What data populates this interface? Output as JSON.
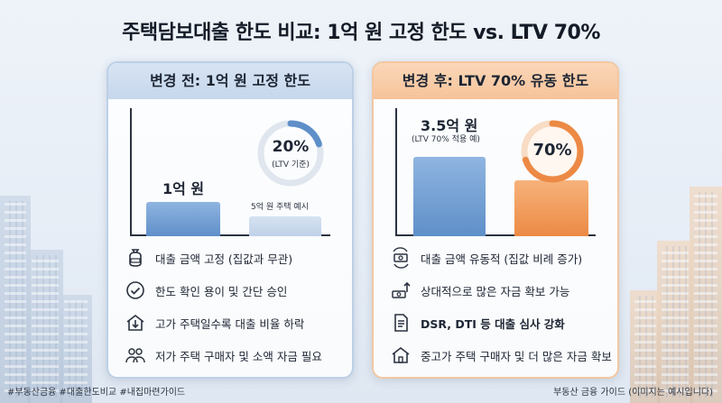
{
  "title": "주택담보대출 한도 비교: 1억 원 고정 한도 vs. LTV 70%",
  "before": {
    "header": "변경 전: 1억 원 고정 한도",
    "bar_label": "1억 원",
    "ring_pct": "20%",
    "ring_sub": "(LTV 기준)",
    "ring_fraction": 0.2,
    "example": "5억 원 주택 예시",
    "features": [
      {
        "text": "대출 금액 고정 (집값과 무관)",
        "icon": "money-bag-icon"
      },
      {
        "text": "한도 확인 용이 및 간단 승인",
        "icon": "check-circle-icon"
      },
      {
        "text": "고가 주택일수록 대출 비율 하락",
        "icon": "house-down-arrow-icon"
      },
      {
        "text": "저가 주택 구매자 및 소액 자금 필요",
        "icon": "people-icon"
      }
    ]
  },
  "after": {
    "header": "변경 후: LTV 70% 유동 한도",
    "bar_label": "3.5억 원",
    "bar_sub": "(LTV 70% 적용 예)",
    "ring_pct": "70%",
    "ring_fraction": 0.7,
    "features": [
      {
        "text": "대출 금액 유동적 (집값 비례 증가)",
        "icon": "money-cycle-icon"
      },
      {
        "text": "상대적으로 많은 자금 확보 가능",
        "icon": "money-up-icon"
      },
      {
        "text": "DSR, DTI 등 대출 심사 강화",
        "icon": "document-icon"
      },
      {
        "text": "중고가 주택 구매자 및 더 많은 자금 확보",
        "icon": "house-icon"
      }
    ]
  },
  "footer_left": "#부동산금융 #대출한도비교 #내집마련가이드",
  "footer_right": "부동산 금융 가이드 (이미지는 예시입니다)",
  "colors": {
    "blue": "#5f8fc9",
    "orange": "#ec8a45",
    "ring_track": "#dfe6ee"
  }
}
